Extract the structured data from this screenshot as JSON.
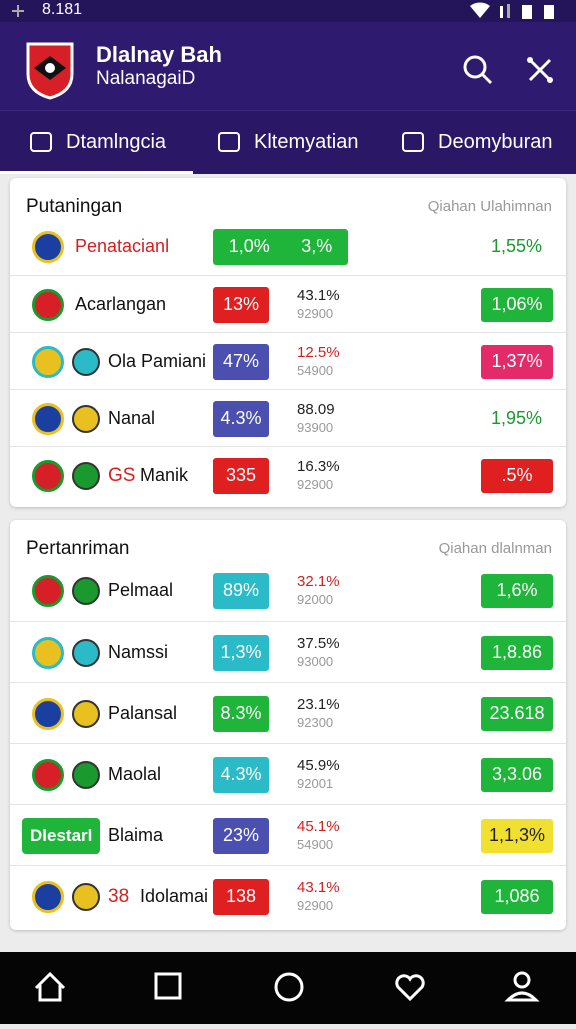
{
  "status": {
    "time": "8.181"
  },
  "header": {
    "title": "Dlalnay Bah",
    "subtitle": "NalanagaiD"
  },
  "tabs": [
    "Dtamlngcia",
    "Kltemyatian",
    "Deomyburan"
  ],
  "sections": [
    {
      "title": "Putaningan",
      "note": "Qiahan Ulahimnan",
      "top": 178,
      "row_h": 57,
      "rows": [
        {
          "name": "Penatacianl",
          "name_color": "#d32020",
          "badge": "1,0%",
          "badge2": "3,%",
          "badge_color": "#1fb43a",
          "right": "1,55%",
          "right_color": "#1a9a2e",
          "right_pill": false
        },
        {
          "name": "Acarlangan",
          "badge": "13%",
          "badge_color": "#e02020",
          "mid": "43.1%",
          "mid_sub": "92900",
          "right": "1,06%",
          "right_color": "#1fb43a",
          "right_pill": true
        },
        {
          "name": "Ola Pamiani",
          "badge": "47%",
          "badge_color": "#4a4fb0",
          "mid": "12.5%",
          "mid_color": "#d32020",
          "mid_sub": "54900",
          "right": "1,37%",
          "right_color": "#e52a6a",
          "right_pill": true
        },
        {
          "name": "Nanal",
          "badge": "4.3%",
          "badge_color": "#4a4fb0",
          "mid": "88.09",
          "mid_sub": "93900",
          "right": "1,95%",
          "right_color": "#1a9a2e",
          "right_pill": false
        },
        {
          "prefix": "GS",
          "name": "Manik",
          "badge": "335",
          "badge_color": "#e02020",
          "mid": "16.3%",
          "mid_sub": "92900",
          "right": ".5%",
          "right_color": "#e02020",
          "right_pill": true
        }
      ]
    },
    {
      "title": "Pertanriman",
      "note": "Qiahan dlalnman",
      "top": 520,
      "row_h": 61,
      "rows": [
        {
          "name": "Pelmaal",
          "badge": "89%",
          "badge_color": "#2bbac8",
          "mid": "32.1%",
          "mid_color": "#d32020",
          "mid_sub": "92000",
          "right": "1,6%",
          "right_color": "#1fb43a",
          "right_pill": true
        },
        {
          "name": "Namssi",
          "badge": "1,3%",
          "badge_color": "#2bbac8",
          "mid": "37.5%",
          "mid_sub": "93000",
          "right": "1,8.86",
          "right_color": "#1fb43a",
          "right_pill": true
        },
        {
          "name": "Palansal",
          "badge": "8.3%",
          "badge_color": "#1fb43a",
          "mid": "23.1%",
          "mid_sub": "92300",
          "right": "23.618",
          "right_color": "#1fb43a",
          "right_pill": true
        },
        {
          "name": "Maolal",
          "badge": "4.3%",
          "badge_color": "#2bbac8",
          "mid": "45.9%",
          "mid_sub": "92001",
          "right": "3,3.06",
          "right_color": "#1fb43a",
          "right_pill": true
        },
        {
          "tag": "Dlestarl",
          "name": "Blaima",
          "badge": "23%",
          "badge_color": "#4a4fb0",
          "mid": "45.1%",
          "mid_color": "#d32020",
          "mid_sub": "54900",
          "right": "1,1,3%",
          "right_color": "#f2e030",
          "right_pill": true
        },
        {
          "prefix": "38",
          "name": "Idolamai",
          "badge": "138",
          "badge_color": "#e02020",
          "mid": "43.1%",
          "mid_color": "#d32020",
          "mid_sub": "92900",
          "right": "1,086",
          "right_color": "#1fb43a",
          "right_pill": true
        }
      ]
    }
  ]
}
